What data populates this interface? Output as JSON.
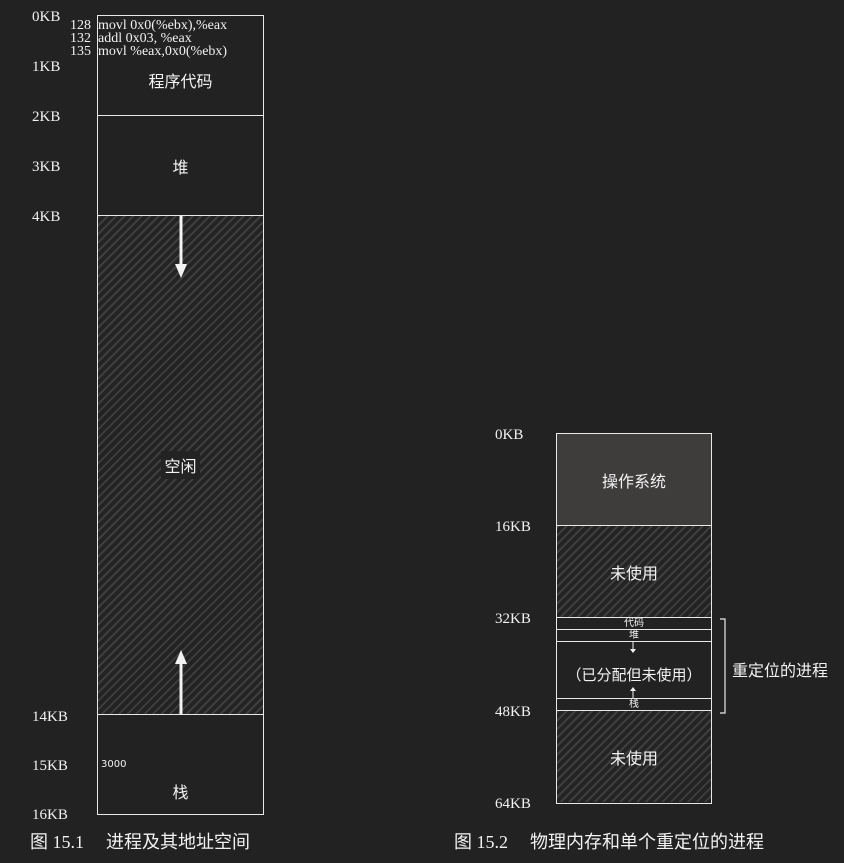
{
  "figure1": {
    "axis_labels": [
      "0KB",
      "1KB",
      "2KB",
      "3KB",
      "4KB",
      "14KB",
      "15KB",
      "16KB"
    ],
    "code_lines": [
      {
        "addr": "128",
        "instr": "movl 0x0(%ebx),%eax"
      },
      {
        "addr": "132",
        "instr": "addl 0x03, %eax"
      },
      {
        "addr": "135",
        "instr": "movl %eax,0x0(%ebx)"
      }
    ],
    "regions": {
      "code": "程序代码",
      "heap": "堆",
      "free": "空闲",
      "stack": "栈"
    },
    "stack_value": "3000",
    "caption_num": "图 15.1",
    "caption_text": "进程及其地址空间"
  },
  "figure2": {
    "axis_labels": [
      "0KB",
      "16KB",
      "32KB",
      "48KB",
      "64KB"
    ],
    "regions": {
      "os": "操作系统",
      "unused_top": "未使用",
      "code": "代码",
      "heap": "堆",
      "allocated_unused": "（已分配但未使用）",
      "stack": "栈",
      "unused_bottom": "未使用"
    },
    "bracket_label": "重定位的进程",
    "caption_num": "图 15.2",
    "caption_text": "物理内存和单个重定位的进程"
  },
  "colors": {
    "background": "#222222",
    "line": "#e8e8e8",
    "os_fill": "#3f3c3c",
    "hatch": "#3e3e3e"
  }
}
